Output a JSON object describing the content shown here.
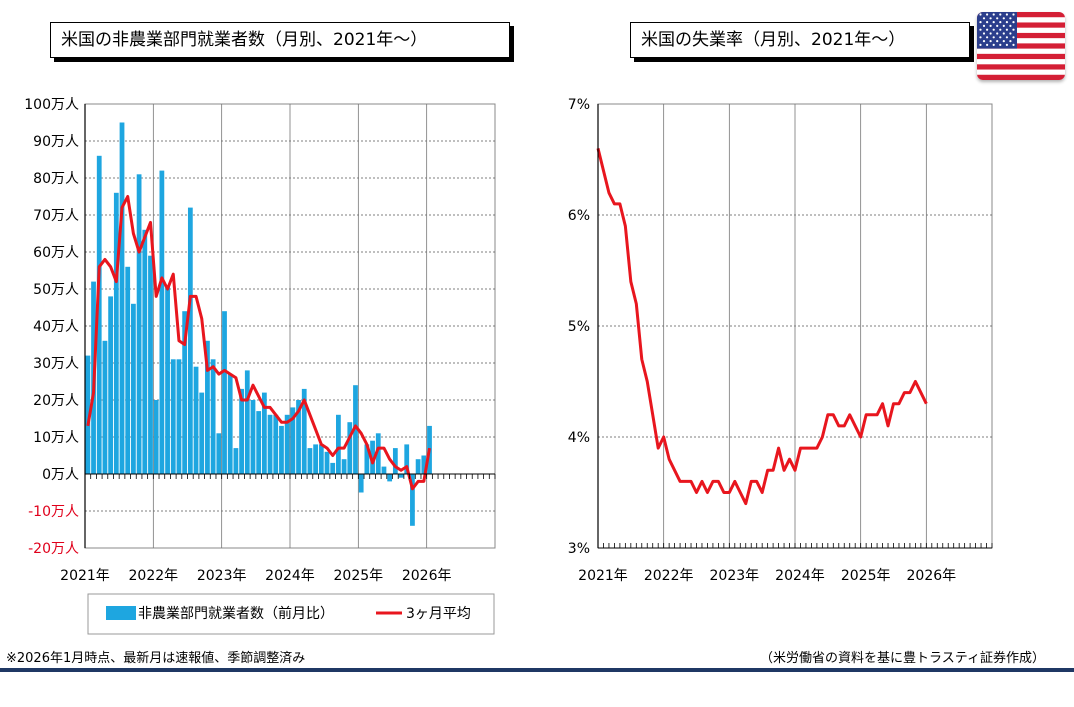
{
  "left_title": "米国の非農業部門就業者数（月別、2021年～）",
  "right_title": "米国の失業率（月別、2021年～）",
  "footnote_left": "※2026年1月時点、最新月は速報値、季節調整済み",
  "footnote_right": "（米労働省の資料を基に豊トラスティ証券作成）",
  "colors": {
    "bar": "#1ea6e0",
    "line": "#e8161e",
    "negative_label": "#e0001b",
    "footer_line": "#1f3864"
  },
  "chart_data": [
    {
      "type": "bar",
      "title": "米国の非農業部門就業者数（月別、2021年～）",
      "y_tick_labels": [
        "100万人",
        "90万人",
        "80万人",
        "70万人",
        "60万人",
        "50万人",
        "40万人",
        "30万人",
        "20万人",
        "10万人",
        "0万人",
        "-10万人",
        "-20万人"
      ],
      "ylim": [
        -20,
        100
      ],
      "x_tick_labels": [
        "2021年",
        "2022年",
        "2023年",
        "2024年",
        "2025年",
        "2026年"
      ],
      "grid": true,
      "legend_position": "bottom",
      "series": [
        {
          "name": "非農業部門就業者数（前月比）",
          "type": "bar",
          "values": [
            32,
            52,
            86,
            36,
            48,
            76,
            95,
            56,
            46,
            81,
            66,
            59,
            20,
            82,
            51,
            31,
            31,
            44,
            72,
            29,
            22,
            36,
            31,
            11,
            44,
            27,
            7,
            23,
            28,
            20,
            17,
            22,
            16,
            16,
            13,
            16,
            18,
            20,
            23,
            7,
            8,
            8,
            6,
            3,
            16,
            4,
            14,
            24,
            -5,
            8,
            9,
            11,
            2,
            -2,
            7,
            -1,
            8,
            -14,
            4,
            5,
            13
          ]
        },
        {
          "name": "3ヶ月平均",
          "type": "line",
          "values": [
            13,
            22,
            56,
            58,
            56,
            52,
            72,
            75,
            65,
            60,
            64,
            68,
            48,
            53,
            50,
            54,
            36,
            35,
            48,
            48,
            42,
            28,
            29,
            27,
            28,
            27,
            26,
            20,
            20,
            24,
            21,
            18,
            18,
            16,
            14,
            14,
            15,
            17,
            20,
            16,
            12,
            8,
            7,
            5,
            7,
            7,
            10,
            13,
            11,
            8,
            3,
            7,
            7,
            4,
            2,
            1,
            2,
            -4,
            -2,
            -2,
            7
          ]
        }
      ]
    },
    {
      "type": "line",
      "title": "米国の失業率（月別、2021年～）",
      "y_tick_labels": [
        "7%",
        "6%",
        "5%",
        "4%",
        "3%"
      ],
      "ylim": [
        3,
        7
      ],
      "x_tick_labels": [
        "2021年",
        "2022年",
        "2023年",
        "2024年",
        "2025年",
        "2026年"
      ],
      "grid": true,
      "series": [
        {
          "name": "失業率",
          "values": [
            6.6,
            6.4,
            6.2,
            6.1,
            6.1,
            5.9,
            5.4,
            5.2,
            4.7,
            4.5,
            4.2,
            3.9,
            4.0,
            3.8,
            3.7,
            3.6,
            3.6,
            3.6,
            3.5,
            3.6,
            3.5,
            3.6,
            3.6,
            3.5,
            3.5,
            3.6,
            3.5,
            3.4,
            3.6,
            3.6,
            3.5,
            3.7,
            3.7,
            3.9,
            3.7,
            3.8,
            3.7,
            3.9,
            3.9,
            3.9,
            3.9,
            4.0,
            4.2,
            4.2,
            4.1,
            4.1,
            4.2,
            4.1,
            4.0,
            4.2,
            4.2,
            4.2,
            4.3,
            4.1,
            4.3,
            4.3,
            4.4,
            4.4,
            4.5,
            4.4,
            4.3
          ]
        }
      ]
    }
  ]
}
